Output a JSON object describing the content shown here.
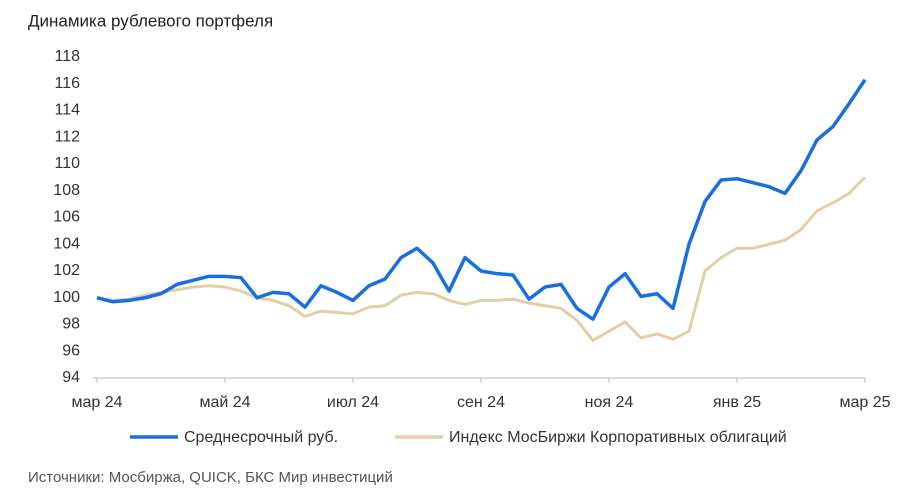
{
  "chart_data": {
    "type": "line",
    "title": "Динамика рублевого портфеля",
    "source": "Источники: Мосбиржа, QUICK, БКС Мир инвестиций",
    "x": [
      0,
      0.25,
      0.5,
      0.75,
      1,
      1.25,
      1.5,
      1.75,
      2,
      2.25,
      2.5,
      2.75,
      3,
      3.25,
      3.5,
      3.75,
      4,
      4.25,
      4.5,
      4.75,
      5,
      5.25,
      5.5,
      5.75,
      6,
      6.25,
      6.5,
      6.75,
      7,
      7.25,
      7.5,
      7.75,
      8,
      8.25,
      8.5,
      8.75,
      9,
      9.25,
      9.5,
      9.75,
      10,
      10.25,
      10.5,
      10.75,
      11,
      11.25,
      11.5,
      11.75,
      12
    ],
    "series": [
      {
        "name": "Среднесрочный руб.",
        "color": "#1a6fe0",
        "values": [
          100,
          99.7,
          99.8,
          100,
          100.3,
          101,
          101.3,
          101.6,
          101.6,
          101.5,
          100,
          100.4,
          100.3,
          99.3,
          100.9,
          100.4,
          99.8,
          100.9,
          101.4,
          103,
          103.7,
          102.6,
          100.5,
          103,
          102,
          101.8,
          101.7,
          99.9,
          100.8,
          101,
          99.2,
          98.4,
          100.8,
          101.8,
          100.1,
          100.3,
          99.2,
          104,
          107.2,
          108.8,
          108.9,
          108.6,
          108.3,
          107.8,
          109.5,
          111.8,
          112.8,
          114.5,
          116.3
        ]
      },
      {
        "name": "Индекс МосБиржи Корпоративных облигаций",
        "color": "#e3cfa6",
        "values": [
          100,
          99.8,
          99.9,
          100.2,
          100.4,
          100.6,
          100.8,
          100.9,
          100.8,
          100.5,
          100,
          99.8,
          99.4,
          98.6,
          99,
          98.9,
          98.8,
          99.3,
          99.4,
          100.2,
          100.4,
          100.3,
          99.8,
          99.5,
          99.8,
          99.8,
          99.9,
          99.6,
          99.4,
          99.2,
          98.3,
          96.8,
          97.5,
          98.2,
          97,
          97.3,
          96.9,
          97.5,
          102,
          103,
          103.7,
          103.7,
          104,
          104.3,
          105.1,
          106.5,
          107.1,
          107.8,
          109
        ]
      }
    ],
    "xlim": [
      0,
      12
    ],
    "xticks": [
      {
        "value": 0,
        "label": "мар 24"
      },
      {
        "value": 2,
        "label": "май 24"
      },
      {
        "value": 4,
        "label": "июл 24"
      },
      {
        "value": 6,
        "label": "сен 24"
      },
      {
        "value": 8,
        "label": "ноя 24"
      },
      {
        "value": 10,
        "label": "янв 25"
      },
      {
        "value": 12,
        "label": "мар 25"
      }
    ],
    "ylim": [
      94,
      118
    ],
    "yticks": [
      94,
      96,
      98,
      100,
      102,
      104,
      106,
      108,
      110,
      112,
      114,
      116,
      118
    ],
    "grid": false
  }
}
